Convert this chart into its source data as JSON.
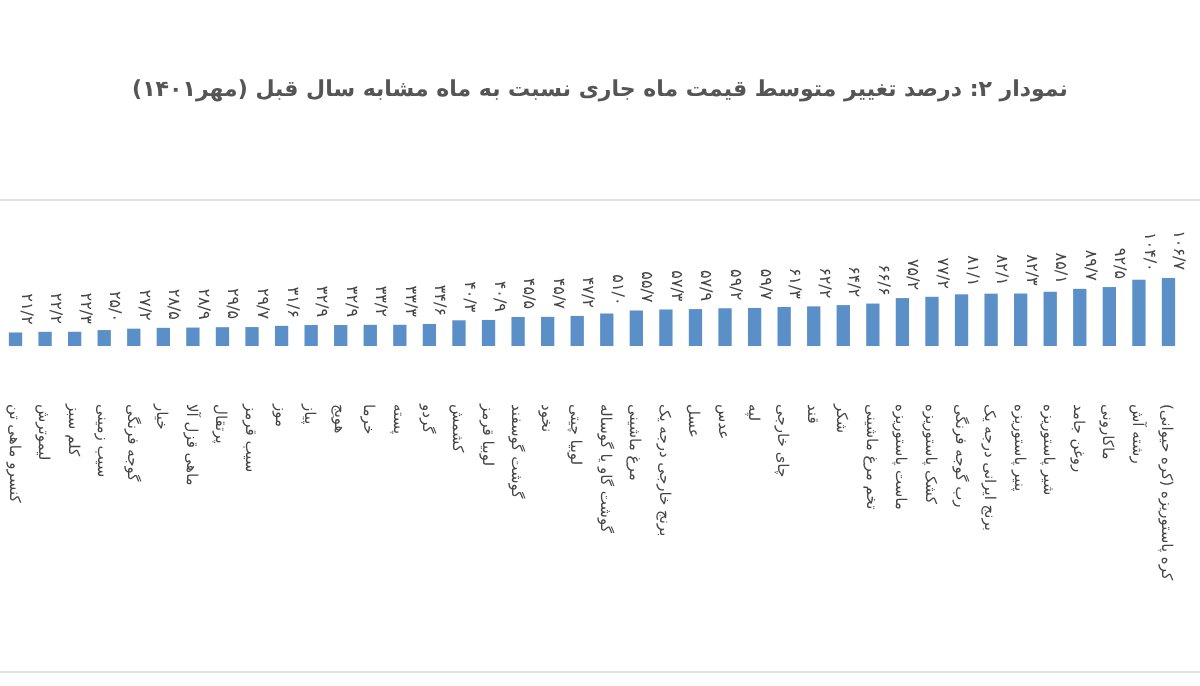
{
  "chart_data": {
    "type": "bar",
    "title": "نمودار ۲: درصد تغییر متوسط قیمت ماه جاری نسبت به ماه مشابه سال قبل (مهر۱۴۰۱)",
    "categories": [
      "کنسرو ماهی تن",
      "لیموترش",
      "کلم سبز",
      "سیب زمینی",
      "گوجه فرنگی",
      "خیار",
      "ماهی قزل آلا",
      "پرتقال",
      "سیب قرمز",
      "موز",
      "پیاز",
      "هویج",
      "خرما",
      "پسته",
      "گردو",
      "کشمش",
      "لوبیا قرمز",
      "گوشت گوسفند",
      "نخود",
      "لوبیا چیتی",
      "گوشت گاو یا گوساله",
      "مرغ ماشینی",
      "برنج خارجی درجه یک",
      "عسل",
      "عدس",
      "لپه",
      "چای خارجی",
      "قند",
      "شکر",
      "تخم مرغ ماشینی",
      "ماست پاستوریزه",
      "کشک پاستوریزه",
      "رب گوجه فرنگی",
      "برنج ایرانی درجه یک",
      "پنیر پاستوریزه",
      "شیر پاستوریزه",
      "روغن جامد",
      "ماکارونی",
      "رشته آش",
      "کره پاستوریزه (کره حیوانی)"
    ],
    "values": [
      21.2,
      22.2,
      22.3,
      25.0,
      27.2,
      28.5,
      28.9,
      29.5,
      29.7,
      31.6,
      32.9,
      32.9,
      33.2,
      33.3,
      34.6,
      40.3,
      40.9,
      45.5,
      45.7,
      47.2,
      51.0,
      55.7,
      57.3,
      57.9,
      59.2,
      59.7,
      61.3,
      62.2,
      64.2,
      66.6,
      75.2,
      77.2,
      81.1,
      82.1,
      82.3,
      85.1,
      89.7,
      92.5,
      104.0,
      106.7
    ],
    "value_labels": [
      "۲۱/۲",
      "۲۲/۲",
      "۲۲/۳",
      "۲۵/۰",
      "۲۷/۲",
      "۲۸/۵",
      "۲۸/۹",
      "۲۹/۵",
      "۲۹/۷",
      "۳۱/۶",
      "۳۲/۹",
      "۳۲/۹",
      "۳۳/۲",
      "۳۳/۳",
      "۳۴/۶",
      "۴۰/۳",
      "۴۰/۹",
      "۴۵/۵",
      "۴۵/۷",
      "۴۷/۲",
      "۵۱/۰",
      "۵۵/۷",
      "۵۷/۳",
      "۵۷/۹",
      "۵۹/۲",
      "۵۹/۷",
      "۶۱/۳",
      "۶۲/۲",
      "۶۴/۲",
      "۶۶/۶",
      "۷۵/۲",
      "۷۷/۲",
      "۸۱/۱",
      "۸۲/۱",
      "۸۲/۳",
      "۸۵/۱",
      "۸۹/۷",
      "۹۲/۵",
      "۱۰۴/۰",
      "۱۰۶/۷"
    ],
    "color": "#5b8fc7"
  }
}
